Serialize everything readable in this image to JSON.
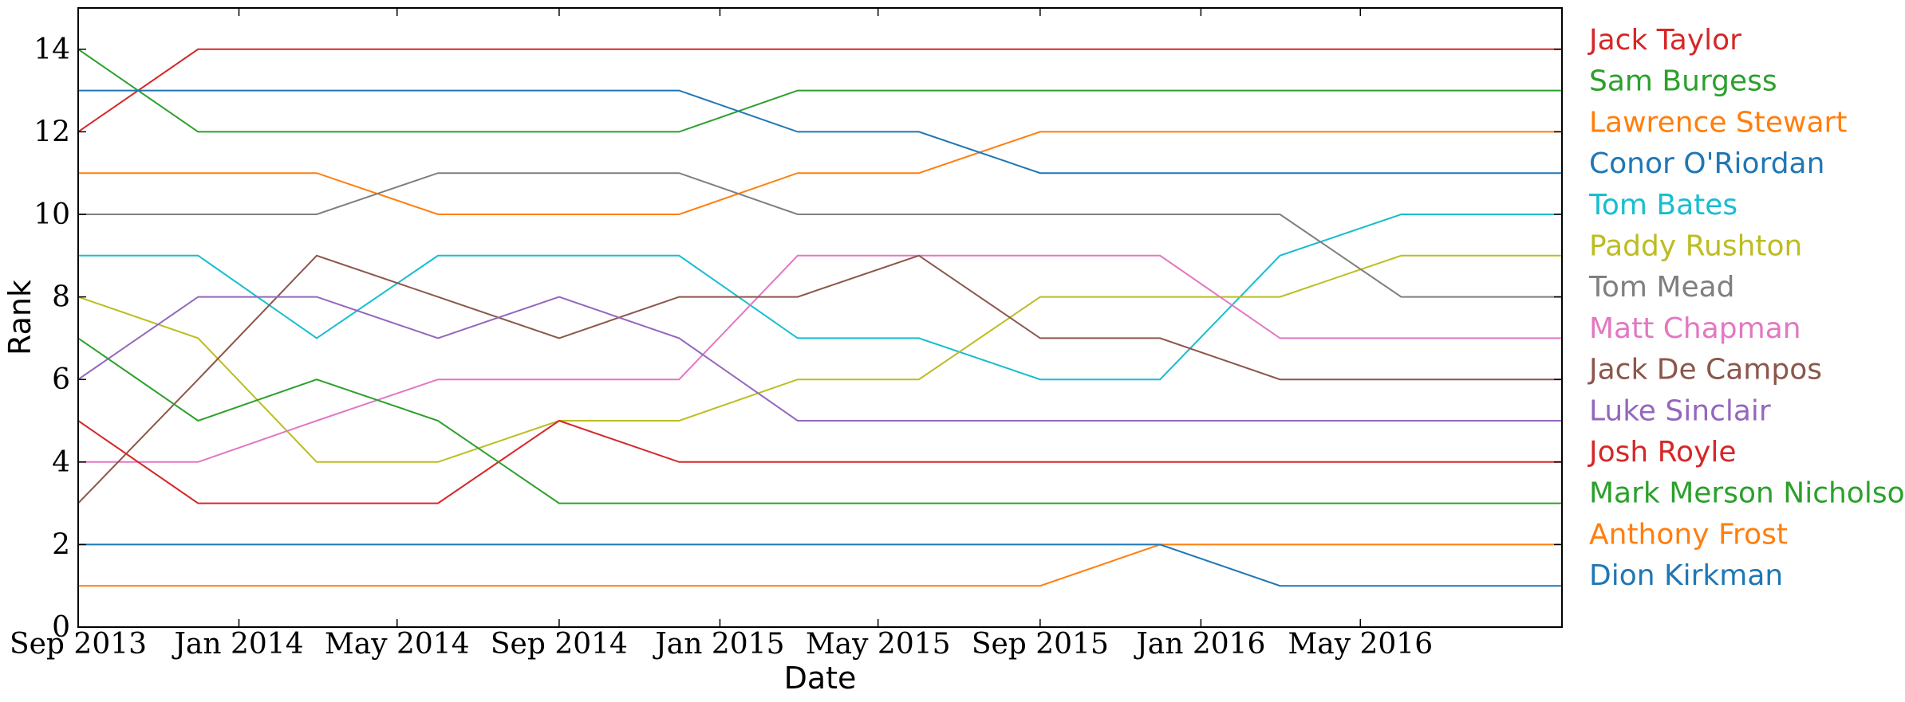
{
  "chart_data": {
    "type": "line",
    "title": "",
    "xlabel": "Date",
    "ylabel": "Rank",
    "xlim": [
      "2013-09-01",
      "2016-10-01"
    ],
    "ylim": [
      0,
      15
    ],
    "x_ticks": [
      "2013-09-01",
      "2014-01-01",
      "2014-05-01",
      "2014-09-01",
      "2015-01-01",
      "2015-05-01",
      "2015-09-01",
      "2016-01-01",
      "2016-05-01"
    ],
    "x_tick_labels": [
      "Sep 2013",
      "Jan 2014",
      "May 2014",
      "Sep 2014",
      "Jan 2015",
      "May 2015",
      "Sep 2015",
      "Jan 2016",
      "May 2016"
    ],
    "y_ticks": [
      0,
      2,
      4,
      6,
      8,
      10,
      12,
      14
    ],
    "y_tick_labels": [
      "0",
      "2",
      "4",
      "6",
      "8",
      "10",
      "12",
      "14"
    ],
    "grid": false,
    "legend_position": "right",
    "x": [
      "2013-09-01",
      "2013-12-01",
      "2014-03-01",
      "2014-06-01",
      "2014-09-01",
      "2014-12-01",
      "2015-03-01",
      "2015-06-01",
      "2015-09-01",
      "2015-12-01",
      "2016-03-01",
      "2016-06-01",
      "2016-10-01"
    ],
    "series": [
      {
        "name": "Jack Taylor",
        "color": "#d62728",
        "values": [
          12,
          14,
          14,
          14,
          14,
          14,
          14,
          14,
          14,
          14,
          14,
          14,
          14
        ]
      },
      {
        "name": "Sam Burgess",
        "color": "#2ca02c",
        "values": [
          14,
          12,
          12,
          12,
          12,
          12,
          13,
          13,
          13,
          13,
          13,
          13,
          13
        ]
      },
      {
        "name": "Lawrence Stewart",
        "color": "#ff7f0e",
        "values": [
          11,
          11,
          11,
          10,
          10,
          10,
          11,
          11,
          12,
          12,
          12,
          12,
          12
        ]
      },
      {
        "name": "Conor O'Riordan",
        "color": "#1f77b4",
        "values": [
          13,
          13,
          13,
          13,
          13,
          13,
          12,
          12,
          11,
          11,
          11,
          11,
          11
        ]
      },
      {
        "name": "Tom Bates",
        "color": "#17becf",
        "values": [
          9,
          9,
          7,
          9,
          9,
          9,
          7,
          7,
          6,
          6,
          9,
          10,
          10
        ]
      },
      {
        "name": "Paddy Rushton",
        "color": "#bcbd22",
        "values": [
          8,
          7,
          4,
          4,
          5,
          5,
          6,
          6,
          8,
          8,
          8,
          9,
          9
        ]
      },
      {
        "name": "Tom Mead",
        "color": "#7f7f7f",
        "values": [
          10,
          10,
          10,
          11,
          11,
          11,
          10,
          10,
          10,
          10,
          10,
          8,
          8
        ]
      },
      {
        "name": "Matt Chapman",
        "color": "#e377c2",
        "values": [
          4,
          4,
          5,
          6,
          6,
          6,
          9,
          9,
          9,
          9,
          7,
          7,
          7
        ]
      },
      {
        "name": "Jack De Campos",
        "color": "#8c564b",
        "values": [
          3,
          6,
          9,
          8,
          7,
          8,
          8,
          9,
          7,
          7,
          6,
          6,
          6
        ]
      },
      {
        "name": "Luke Sinclair",
        "color": "#9467bd",
        "values": [
          6,
          8,
          8,
          7,
          8,
          7,
          5,
          5,
          5,
          5,
          5,
          5,
          5
        ]
      },
      {
        "name": "Josh Royle",
        "color": "#d62728",
        "values": [
          5,
          3,
          3,
          3,
          5,
          4,
          4,
          4,
          4,
          4,
          4,
          4,
          4
        ]
      },
      {
        "name": "Mark Merson Nicholson",
        "color": "#2ca02c",
        "values": [
          7,
          5,
          6,
          5,
          3,
          3,
          3,
          3,
          3,
          3,
          3,
          3,
          3
        ]
      },
      {
        "name": "Anthony Frost",
        "color": "#ff7f0e",
        "values": [
          1,
          1,
          1,
          1,
          1,
          1,
          1,
          1,
          1,
          2,
          2,
          2,
          2
        ]
      },
      {
        "name": "Dion Kirkman",
        "color": "#1f77b4",
        "values": [
          2,
          2,
          2,
          2,
          2,
          2,
          2,
          2,
          2,
          2,
          1,
          1,
          1
        ]
      }
    ]
  }
}
